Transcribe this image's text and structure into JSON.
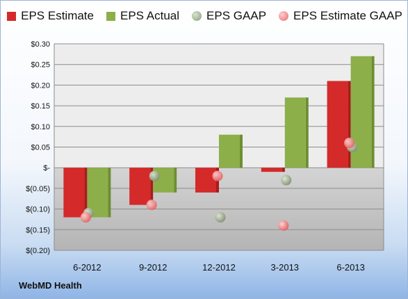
{
  "chart_data": {
    "type": "bar",
    "categories": [
      "6-2012",
      "9-2012",
      "12-2012",
      "3-2013",
      "6-2013"
    ],
    "series": [
      {
        "name": "EPS Estimate",
        "kind": "bar",
        "color": "#d42a2a",
        "values": [
          -0.12,
          -0.09,
          -0.06,
          -0.01,
          0.21
        ]
      },
      {
        "name": "EPS Actual",
        "kind": "bar",
        "color": "#8caf4a",
        "values": [
          -0.12,
          -0.06,
          0.08,
          0.17,
          0.27
        ]
      },
      {
        "name": "EPS GAAP",
        "kind": "point",
        "color": "#9aaa8a",
        "values": [
          -0.11,
          -0.02,
          -0.12,
          -0.03,
          0.05
        ]
      },
      {
        "name": "EPS Estimate GAAP",
        "kind": "point",
        "color": "#f08080",
        "values": [
          -0.12,
          -0.09,
          -0.02,
          -0.14,
          0.06
        ]
      }
    ],
    "ylim": [
      -0.2,
      0.3
    ],
    "yticks": [
      0.3,
      0.25,
      0.2,
      0.15,
      0.1,
      0.05,
      0.0,
      -0.05,
      -0.1,
      -0.15,
      -0.2
    ],
    "ytick_labels": [
      "$0.30",
      "$0.25",
      "$0.20",
      "$0.15",
      "$0.10",
      "$0.05",
      "$-",
      "$(0.05)",
      "$(0.10)",
      "$(0.15)",
      "$(0.20)"
    ],
    "grid": true,
    "legend_position": "top",
    "source": "WebMD Health"
  }
}
